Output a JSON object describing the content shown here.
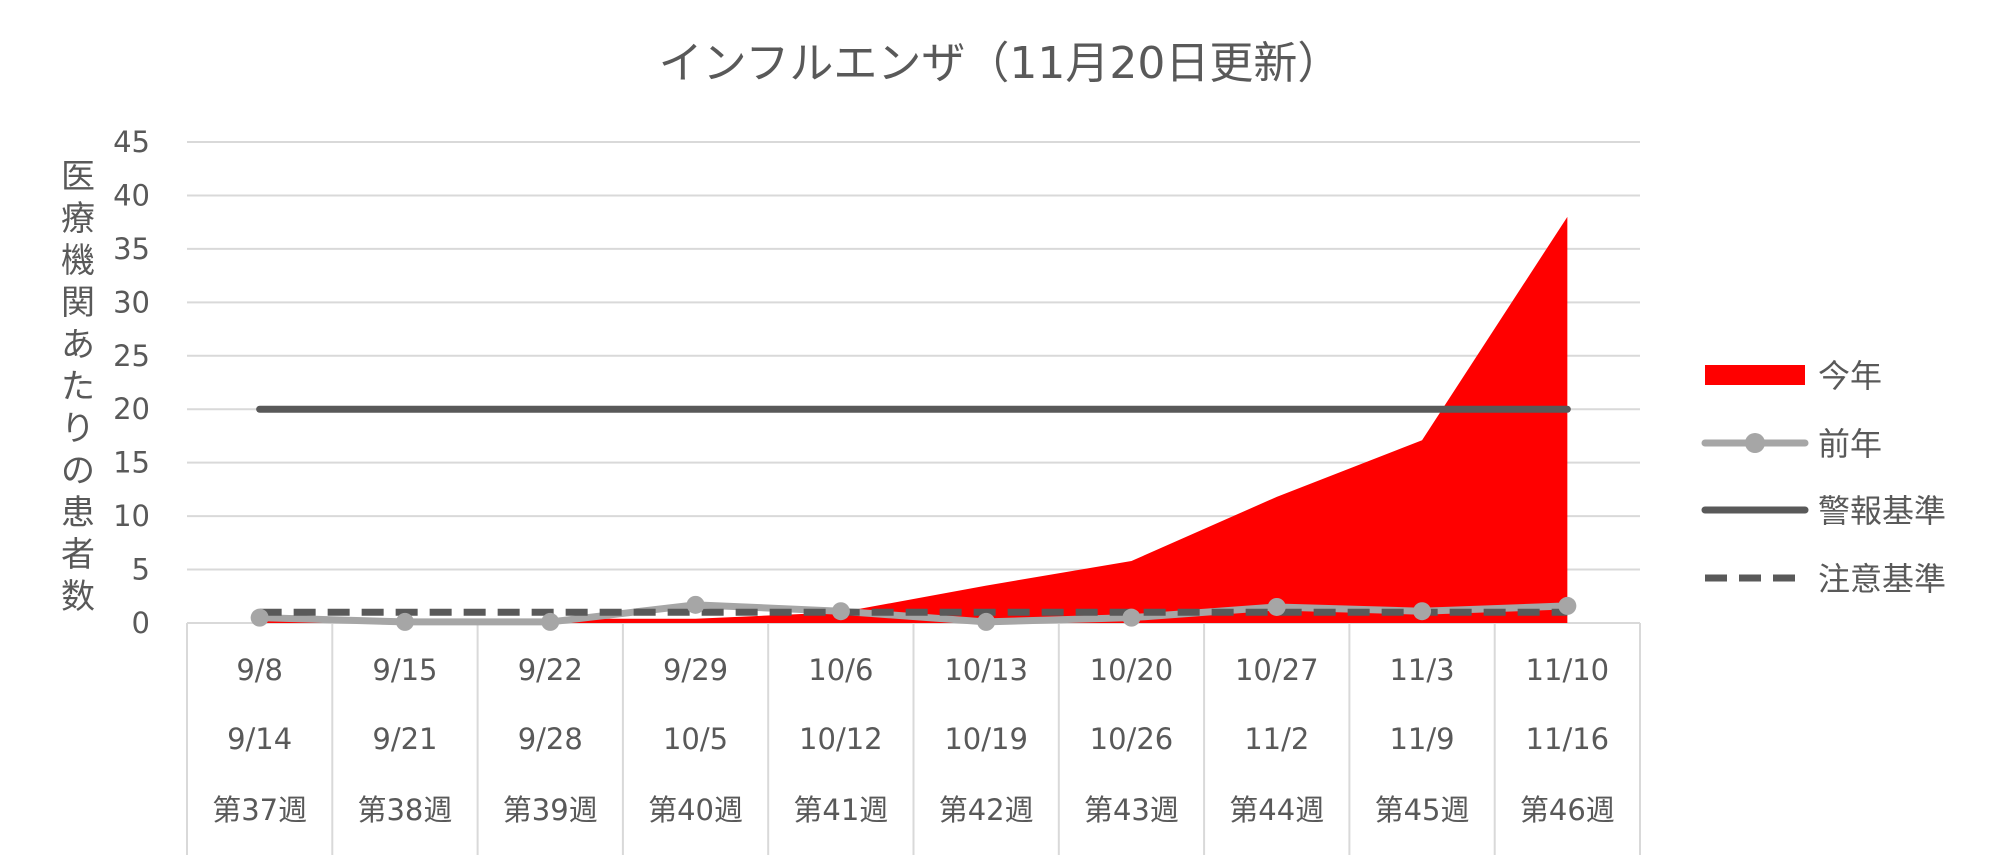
{
  "chart_data": {
    "type": "area",
    "title": "インフルエンザ（11月20日更新）",
    "ylabel": "医療機関あたりの患者数",
    "ylim": [
      0,
      45
    ],
    "yticks": [
      "0",
      "5",
      "10",
      "15",
      "20",
      "25",
      "30",
      "35",
      "40",
      "45"
    ],
    "categories": [
      {
        "start": "9/8",
        "end": "9/14",
        "week": "第37週"
      },
      {
        "start": "9/15",
        "end": "9/21",
        "week": "第38週"
      },
      {
        "start": "9/22",
        "end": "9/28",
        "week": "第39週"
      },
      {
        "start": "9/29",
        "end": "10/5",
        "week": "第40週"
      },
      {
        "start": "10/6",
        "end": "10/12",
        "week": "第41週"
      },
      {
        "start": "10/13",
        "end": "10/19",
        "week": "第42週"
      },
      {
        "start": "10/20",
        "end": "10/26",
        "week": "第43週"
      },
      {
        "start": "10/27",
        "end": "11/2",
        "week": "第44週"
      },
      {
        "start": "11/3",
        "end": "11/9",
        "week": "第45週"
      },
      {
        "start": "11/10",
        "end": "11/16",
        "week": "第46週"
      }
    ],
    "series": [
      {
        "name": "今年",
        "type": "area",
        "color": "#ff0000",
        "values": [
          0.5,
          0.4,
          0.4,
          0.4,
          1.0,
          3.5,
          5.8,
          11.8,
          17.1,
          38.0
        ]
      },
      {
        "name": "前年",
        "type": "line-marker",
        "color": "#a6a6a6",
        "values": [
          0.5,
          0.1,
          0.1,
          1.7,
          1.1,
          0.1,
          0.5,
          1.5,
          1.1,
          1.6
        ]
      },
      {
        "name": "警報基準",
        "type": "line",
        "color": "#595959",
        "values": [
          20,
          20,
          20,
          20,
          20,
          20,
          20,
          20,
          20,
          20
        ]
      },
      {
        "name": "注意基準",
        "type": "dashed-line",
        "color": "#595959",
        "values": [
          1,
          1,
          1,
          1,
          1,
          1,
          1,
          1,
          1,
          1
        ]
      }
    ],
    "grid": true,
    "legend": "right"
  }
}
